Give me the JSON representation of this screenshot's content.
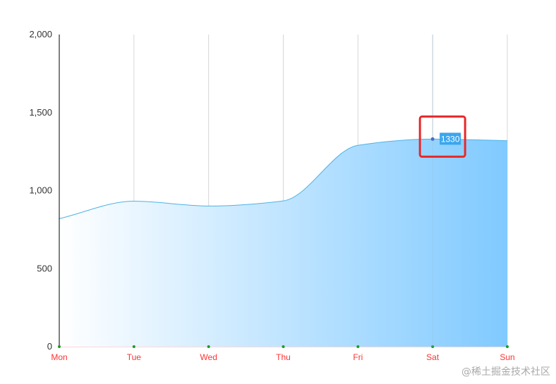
{
  "chart_data": {
    "type": "area",
    "categories": [
      "Mon",
      "Tue",
      "Wed",
      "Thu",
      "Fri",
      "Sat",
      "Sun"
    ],
    "series": [
      {
        "values": [
          820,
          932,
          901,
          934,
          1290,
          1330,
          1320
        ]
      }
    ],
    "ylim": [
      0,
      2000
    ],
    "yticks": [
      "0",
      "500",
      "1,000",
      "1,500",
      "2,000"
    ],
    "ytick_values": [
      0,
      500,
      1000,
      1500,
      2000
    ],
    "grid": "vertical",
    "smooth": true,
    "highlight": {
      "category": "Sat",
      "label": "1330"
    },
    "colors": {
      "line": "#4eb3e6",
      "area_start": "#ffffff",
      "area_end": "#80caff",
      "x_label": "#ff3333",
      "axis": "#000000",
      "grid": "#d6d6d6",
      "point": "#4a6fc2",
      "tick_dot": "#1a9a2a",
      "label_bg": "#3aa6ee",
      "highlight_box": "#e8282b"
    }
  },
  "watermark": "@稀土掘金技术社区"
}
